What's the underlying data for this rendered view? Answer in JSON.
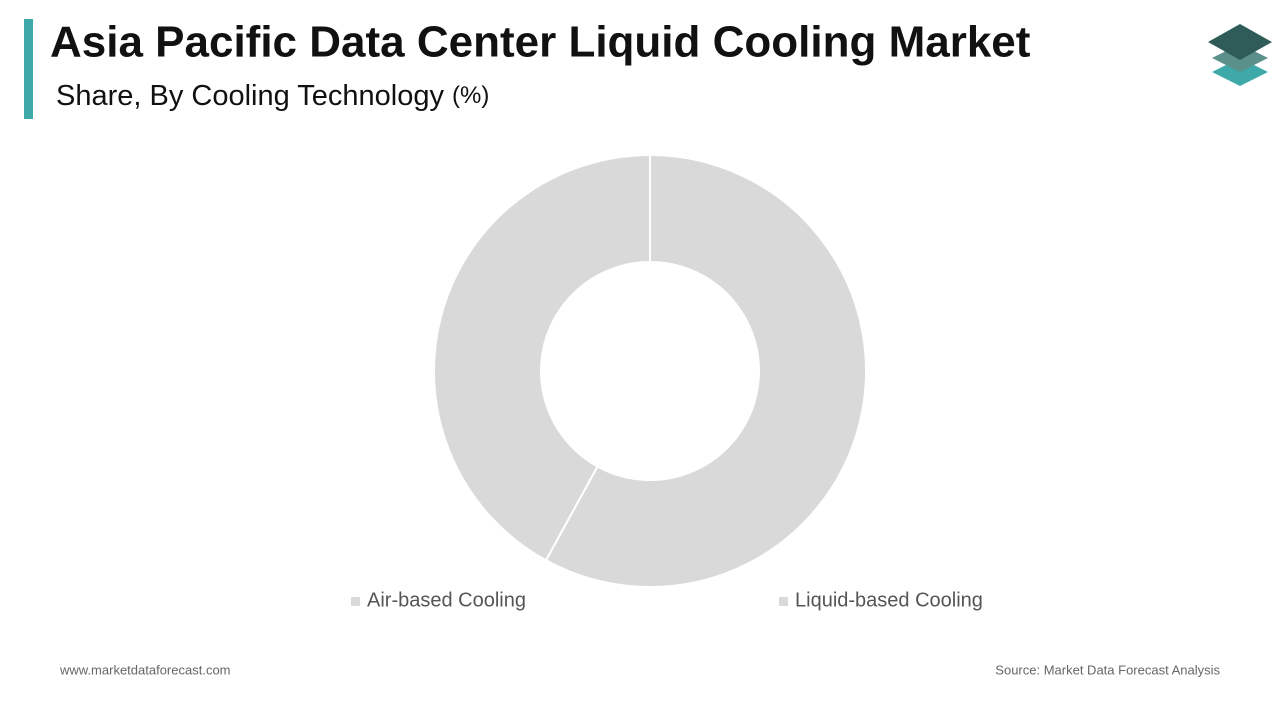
{
  "chart_data": {
    "type": "donut",
    "title": "Asia Pacific Data Center Liquid Cooling Market",
    "subtitle": "Share, By Cooling Technology",
    "unit": "(%)",
    "categories": [
      "Air-based Cooling",
      "Liquid-based Cooling"
    ],
    "values": [
      58,
      42
    ],
    "colors": [
      "#d9d9d9",
      "#d9d9d9"
    ],
    "footer_left": "www.marketdataforecast.com",
    "footer_right": "Source: Market Data Forecast Analysis"
  }
}
